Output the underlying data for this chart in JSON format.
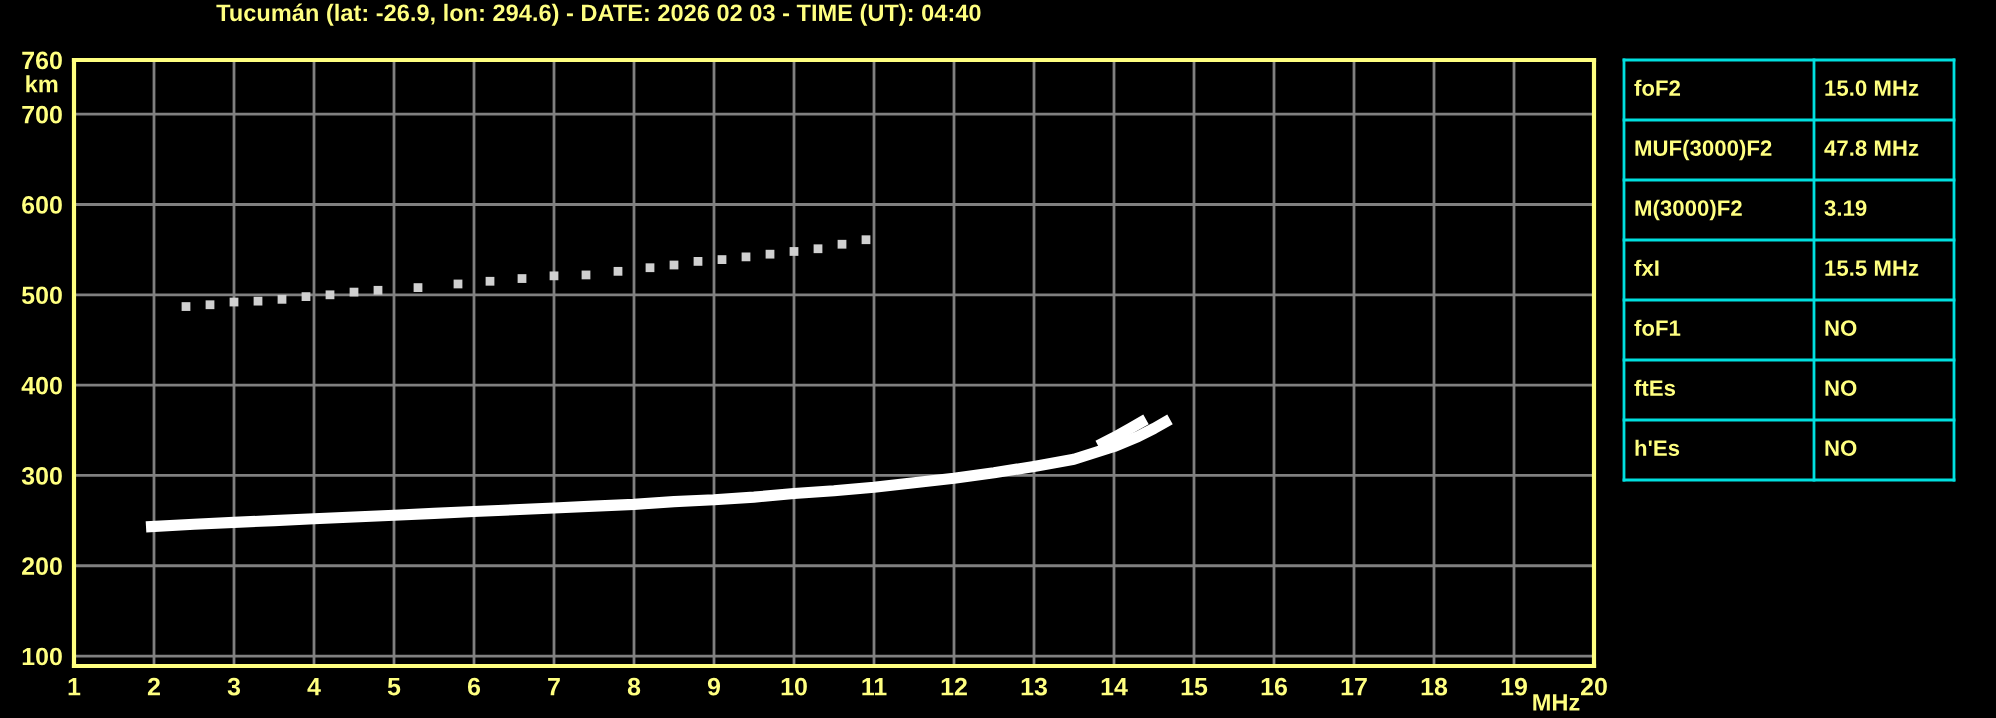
{
  "chart_data": {
    "type": "line",
    "title": "Tucumán (lat: -26.9, lon: 294.6) - DATE: 2026 02 03 - TIME (UT): 04:40",
    "xlabel": "MHz",
    "ylabel": "km",
    "series": [
      {
        "color": "#ffffff",
        "x": [
          1.9,
          2.5,
          3,
          3.5,
          4,
          4.5,
          5,
          5.5,
          6,
          6.5,
          7,
          7.5,
          8,
          8.5,
          9,
          9.5,
          10,
          10.5,
          11,
          11.5,
          12,
          12.5,
          13,
          13.5,
          14,
          14.3,
          14.5,
          14.7
        ],
        "values": [
          243,
          246,
          248,
          250,
          252,
          254,
          256,
          258,
          260,
          262,
          264,
          266,
          268,
          271,
          273,
          276,
          280,
          283,
          287,
          292,
          297,
          303,
          310,
          318,
          332,
          343,
          352,
          362
        ]
      },
      {
        "color": "#ffffff",
        "x": [
          13.8,
          14.0,
          14.2,
          14.4
        ],
        "values": [
          333,
          342,
          352,
          362
        ]
      },
      {
        "type": "scatter",
        "marker": "square",
        "color": "#d0d0d0",
        "x": [
          2.4,
          2.7,
          3.0,
          3.3,
          3.6,
          3.9,
          4.2,
          4.5,
          4.8,
          5.3,
          5.8,
          6.2,
          6.6,
          7.0,
          7.4,
          7.8,
          8.2,
          8.5,
          8.8,
          9.1,
          9.4,
          9.7,
          10.0,
          10.3,
          10.6,
          10.9
        ],
        "values": [
          487,
          489,
          492,
          493,
          495,
          498,
          500,
          503,
          505,
          508,
          512,
          515,
          518,
          521,
          522,
          526,
          530,
          533,
          537,
          539,
          542,
          545,
          548,
          551,
          556,
          561
        ]
      }
    ],
    "xlim": [
      1,
      20
    ],
    "xticks": [
      1,
      2,
      3,
      4,
      5,
      6,
      7,
      8,
      9,
      10,
      11,
      12,
      13,
      14,
      15,
      16,
      17,
      18,
      19,
      20
    ],
    "ylim": [
      89,
      760
    ],
    "yticks": [
      100,
      200,
      300,
      400,
      500,
      600,
      700,
      760
    ],
    "grid": true,
    "annotations": [
      "foF2",
      "15.0 MHz",
      "MUF(3000)F2",
      "47.8 MHz",
      "M(3000)F2",
      "3.19",
      "fxI",
      "15.5 MHz",
      "foF1",
      "NO",
      "ftEs",
      "NO",
      "h'Es",
      "NO"
    ]
  }
}
